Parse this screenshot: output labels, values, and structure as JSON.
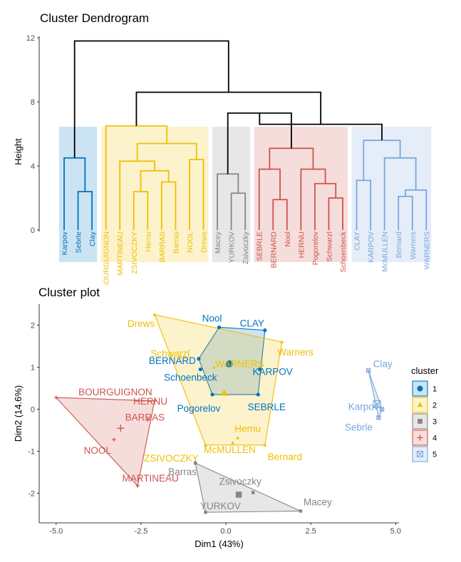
{
  "chart_data": [
    {
      "type": "dendrogram",
      "title": "Cluster Dendrogram",
      "ylabel": "Height",
      "ylim": [
        0,
        12
      ],
      "yticks": [
        0,
        4,
        8,
        12
      ],
      "colors": {
        "c1": "#0073C2",
        "c2": "#EFC000",
        "c3": "#868686",
        "c4": "#CD534C",
        "c5": "#7AA6DC",
        "root": "#000000"
      },
      "leaves": [
        {
          "label": "Karpov",
          "cluster": 1
        },
        {
          "label": "Sebrle",
          "cluster": 1
        },
        {
          "label": "Clay",
          "cluster": 1
        },
        {
          "label": "BOURGUIGNON",
          "cluster": 2
        },
        {
          "label": "MARTINEAU",
          "cluster": 2
        },
        {
          "label": "ZSIVOCZKY",
          "cluster": 2
        },
        {
          "label": "Hernu",
          "cluster": 2
        },
        {
          "label": "BARRAS",
          "cluster": 2
        },
        {
          "label": "Barras",
          "cluster": 2
        },
        {
          "label": "NOOL",
          "cluster": 2
        },
        {
          "label": "Drews",
          "cluster": 2
        },
        {
          "label": "Macey",
          "cluster": 3
        },
        {
          "label": "YURKOV",
          "cluster": 3
        },
        {
          "label": "Zsivoczky",
          "cluster": 3
        },
        {
          "label": "SEBRLE",
          "cluster": 4
        },
        {
          "label": "BERNARD",
          "cluster": 4
        },
        {
          "label": "Nool",
          "cluster": 4
        },
        {
          "label": "HERNU",
          "cluster": 4
        },
        {
          "label": "Pogorelov",
          "cluster": 4
        },
        {
          "label": "Schwarzl",
          "cluster": 4
        },
        {
          "label": "Schoenbeck",
          "cluster": 4
        },
        {
          "label": "CLAY",
          "cluster": 5
        },
        {
          "label": "KARPOV",
          "cluster": 5
        },
        {
          "label": "McMULLEN",
          "cluster": 5
        },
        {
          "label": "Bernard",
          "cluster": 5
        },
        {
          "label": "Warners",
          "cluster": 5
        },
        {
          "label": "WARNERS",
          "cluster": 5
        }
      ],
      "merges": [
        {
          "a": "Sebrle",
          "b": "Clay",
          "height": 2.4,
          "id": "m1"
        },
        {
          "a": "Karpov",
          "b": "m1",
          "height": 4.5,
          "id": "c1"
        },
        {
          "a": "ZSIVOCZKY",
          "b": "Hernu",
          "height": 2.4,
          "id": "m2"
        },
        {
          "a": "BARRAS",
          "b": "Barras",
          "height": 3.0,
          "id": "m3"
        },
        {
          "a": "m2",
          "b": "m3",
          "height": 3.7,
          "id": "m4"
        },
        {
          "a": "MARTINEAU",
          "b": "m4",
          "height": 4.3,
          "id": "m5"
        },
        {
          "a": "NOOL",
          "b": "Drews",
          "height": 4.4,
          "id": "m6"
        },
        {
          "a": "m5",
          "b": "m6",
          "height": 5.4,
          "id": "m7"
        },
        {
          "a": "BOURGUIGNON",
          "b": "m7",
          "height": 6.5,
          "id": "c2"
        },
        {
          "a": "YURKOV",
          "b": "Zsivoczky",
          "height": 2.3,
          "id": "m8"
        },
        {
          "a": "Macey",
          "b": "m8",
          "height": 3.5,
          "id": "c3"
        },
        {
          "a": "BERNARD",
          "b": "Nool",
          "height": 1.9,
          "id": "m9"
        },
        {
          "a": "Schwarzl",
          "b": "Schoenbeck",
          "height": 2.0,
          "id": "m10"
        },
        {
          "a": "Pogorelov",
          "b": "m10",
          "height": 2.9,
          "id": "m11"
        },
        {
          "a": "HERNU",
          "b": "m11",
          "height": 3.8,
          "id": "m12"
        },
        {
          "a": "SEBRLE",
          "b": "m9",
          "height": 3.8,
          "id": "m13"
        },
        {
          "a": "m13",
          "b": "m12",
          "height": 5.1,
          "id": "c4"
        },
        {
          "a": "Bernard",
          "b": "Warners",
          "height": 2.1,
          "id": "m14"
        },
        {
          "a": "m14",
          "b": "WARNERS",
          "height": 2.5,
          "id": "m15"
        },
        {
          "a": "McMULLEN",
          "b": "m15",
          "height": 4.5,
          "id": "m16"
        },
        {
          "a": "CLAY",
          "b": "KARPOV",
          "height": 3.1,
          "id": "m17"
        },
        {
          "a": "m17",
          "b": "m16",
          "height": 5.6,
          "id": "c5"
        },
        {
          "a": "c3",
          "b": "c4",
          "height": 7.3,
          "id": "r1"
        },
        {
          "a": "c5",
          "b": "r1",
          "height": 6.6,
          "id": "r2"
        },
        {
          "a": "c2",
          "b": "r2",
          "height": 8.6,
          "id": "r3"
        },
        {
          "a": "c1",
          "b": "r3",
          "height": 11.8,
          "id": "root"
        }
      ]
    },
    {
      "type": "scatter",
      "title": "Cluster plot",
      "xlabel": "Dim1 (43%)",
      "ylabel": "Dim2 (14.6%)",
      "xlim": [
        -5.5,
        5.1
      ],
      "ylim": [
        -2.7,
        2.5
      ],
      "xticks": [
        -5.0,
        -2.5,
        0.0,
        2.5,
        5.0
      ],
      "xtick_labels": [
        "-5.0",
        "-2.5",
        "0.0",
        "2.5",
        "5.0"
      ],
      "yticks": [
        -2,
        -1,
        0,
        1,
        2
      ],
      "legend": {
        "title": "cluster",
        "position": "right",
        "entries": [
          "1",
          "2",
          "3",
          "4",
          "5"
        ]
      },
      "clusters": [
        {
          "name": "1",
          "color": "#0073C2",
          "fill": "#0073C2",
          "marker": "circle",
          "points": [
            {
              "label": "Nool",
              "x": -0.2,
              "y": 1.95
            },
            {
              "label": "CLAY",
              "x": 1.15,
              "y": 1.88
            },
            {
              "label": "BERNARD",
              "x": -0.8,
              "y": 1.2
            },
            {
              "label": "Schoenbeck",
              "x": -0.75,
              "y": 0.95
            },
            {
              "label": "KARPOV",
              "x": 1.0,
              "y": 0.95
            },
            {
              "label": "Pogorelov",
              "x": -0.4,
              "y": 0.35
            },
            {
              "label": "SEBRLE",
              "x": 0.95,
              "y": 0.35
            }
          ],
          "hull": [
            "Nool",
            "CLAY",
            "SEBRLE",
            "Pogorelov",
            "BERNARD"
          ],
          "centroid": {
            "x": 0.1,
            "y": 1.08
          }
        },
        {
          "name": "2",
          "color": "#EFC000",
          "fill": "#EFC000",
          "marker": "triangle",
          "points": [
            {
              "label": "Drews",
              "x": -2.1,
              "y": 2.25
            },
            {
              "label": "Schwarzl",
              "x": -1.35,
              "y": 1.25
            },
            {
              "label": "WARNERS",
              "x": -0.35,
              "y": 1.0
            },
            {
              "label": "Warners",
              "x": 1.65,
              "y": 1.6
            },
            {
              "label": "Hernu",
              "x": 0.35,
              "y": -0.68
            },
            {
              "label": "McMULLEN",
              "x": 0.2,
              "y": -0.8
            },
            {
              "label": "ZSIVOCZKY",
              "x": -0.6,
              "y": -0.85
            },
            {
              "label": "Bernard",
              "x": 1.15,
              "y": -0.85
            }
          ],
          "hull": [
            "Drews",
            "Warners",
            "Bernard",
            "ZSIVOCZKY"
          ],
          "centroid": {
            "x": -0.05,
            "y": 0.38
          }
        },
        {
          "name": "3",
          "color": "#868686",
          "fill": "#868686",
          "marker": "square",
          "points": [
            {
              "label": "Barras",
              "x": -0.9,
              "y": -1.28
            },
            {
              "label": "Zsivoczky",
              "x": 0.8,
              "y": -1.98
            },
            {
              "label": "Macey",
              "x": 2.2,
              "y": -2.42
            },
            {
              "label": "YURKOV",
              "x": -0.6,
              "y": -2.45
            }
          ],
          "hull": [
            "Barras",
            "Macey",
            "YURKOV"
          ],
          "centroid": {
            "x": 0.38,
            "y": -2.03
          }
        },
        {
          "name": "4",
          "color": "#CD534C",
          "fill": "#CD534C",
          "marker": "cross",
          "points": [
            {
              "label": "BOURGUIGNON",
              "x": -5.0,
              "y": 0.28
            },
            {
              "label": "HERNU",
              "x": -2.1,
              "y": 0.2
            },
            {
              "label": "BARRAS",
              "x": -2.3,
              "y": -0.25
            },
            {
              "label": "NOOL",
              "x": -3.3,
              "y": -0.72
            },
            {
              "label": "MARTINEAU",
              "x": -2.6,
              "y": -1.82
            }
          ],
          "hull": [
            "BOURGUIGNON",
            "HERNU",
            "MARTINEAU"
          ],
          "centroid": {
            "x": -3.1,
            "y": -0.45
          }
        },
        {
          "name": "5",
          "color": "#7AA6DC",
          "fill": "#7AA6DC",
          "marker": "squarex",
          "points": [
            {
              "label": "Clay",
              "x": 4.2,
              "y": 0.92
            },
            {
              "label": "Karpov",
              "x": 4.6,
              "y": 0.0
            },
            {
              "label": "Sebrle",
              "x": 4.5,
              "y": -0.2
            }
          ],
          "hull": [
            "Clay",
            "Karpov",
            "Sebrle"
          ],
          "centroid": {
            "x": 4.45,
            "y": 0.12
          }
        }
      ]
    }
  ]
}
